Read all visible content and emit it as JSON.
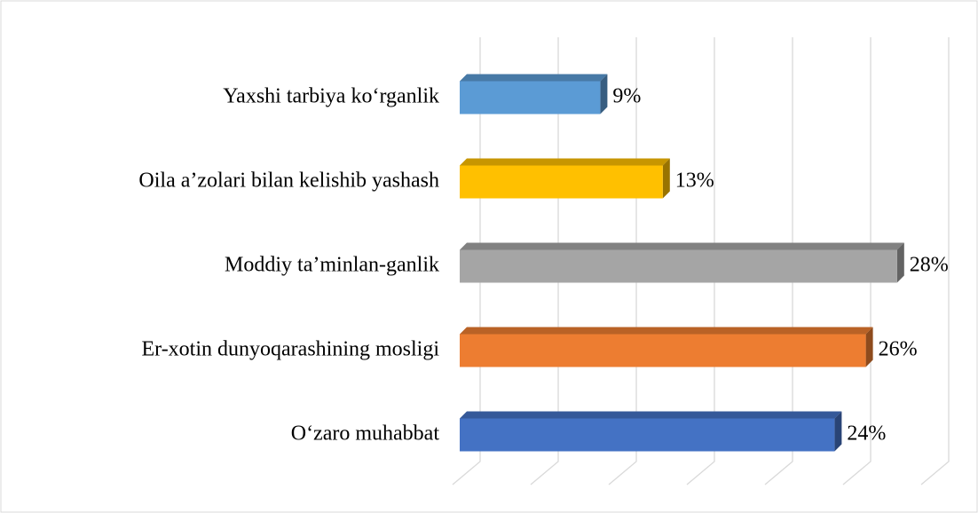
{
  "chart_data": {
    "type": "bar",
    "orientation": "horizontal",
    "categories": [
      "Yaxshi tarbiya ko‘rganlik",
      "Oila a’zolari bilan kelishib yashash",
      "Moddiy ta’minlan-ganlik",
      "Er-xotin dunyoqarashining mosligi",
      "O‘zaro muhabbat"
    ],
    "values": [
      9,
      13,
      28,
      26,
      24
    ],
    "value_labels": [
      "9%",
      "13%",
      "28%",
      "26%",
      "24%"
    ],
    "colors": [
      "#5b9bd5",
      "#ffc000",
      "#a5a5a5",
      "#ed7d31",
      "#4472c4"
    ],
    "xlim": [
      0,
      30
    ],
    "xticks": [
      0,
      5,
      10,
      15,
      20,
      25,
      30
    ],
    "grid": true
  }
}
